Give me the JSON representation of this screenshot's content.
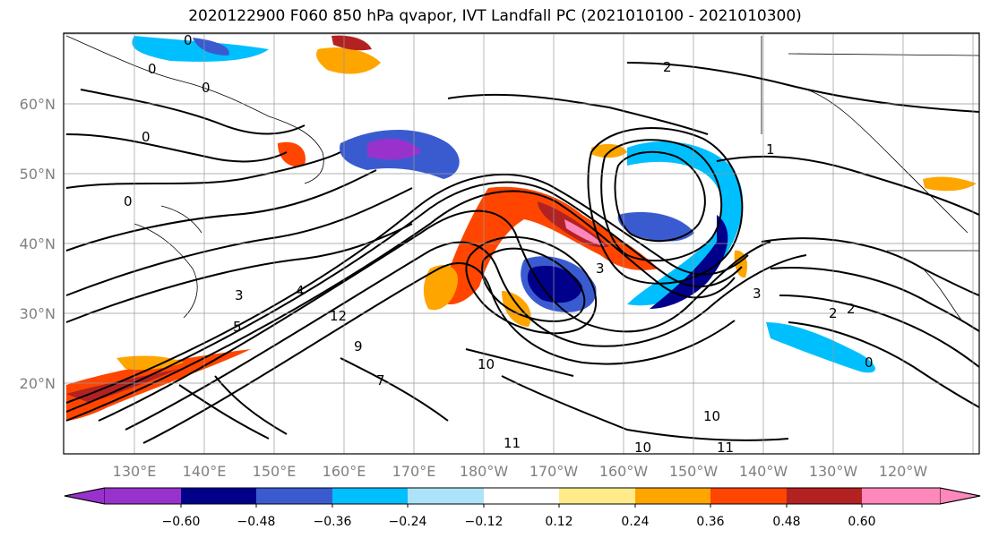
{
  "title": "2020122900 F060 850 hPa qvapor, IVT Landfall PC (2021010100 - 2021010300)",
  "lat_labels": [
    "60°N",
    "50°N",
    "40°N",
    "30°N",
    "20°N"
  ],
  "lon_labels": [
    "130°E",
    "140°E",
    "150°E",
    "160°E",
    "170°E",
    "180°W",
    "170°W",
    "160°W",
    "150°W",
    "140°W",
    "130°W",
    "120°W"
  ],
  "contour_labels": [
    "0",
    "0",
    "0",
    "0",
    "0",
    "1",
    "2",
    "3",
    "3",
    "4",
    "5",
    "7",
    "9",
    "10",
    "10",
    "10",
    "11",
    "11",
    "12",
    "2",
    "2",
    "3",
    "0"
  ],
  "colorbar": {
    "ticks": [
      "−0.60",
      "−0.48",
      "−0.36",
      "−0.24",
      "−0.12",
      "0.12",
      "0.24",
      "0.36",
      "0.48",
      "0.60"
    ],
    "colors": [
      "#9932CC",
      "#00008B",
      "#3A5BD0",
      "#00BFFF",
      "#ADE3FA",
      "#FFFFFF",
      "#FFEB8A",
      "#FFA500",
      "#FF4500",
      "#B22222",
      "#FF88BB"
    ]
  }
}
